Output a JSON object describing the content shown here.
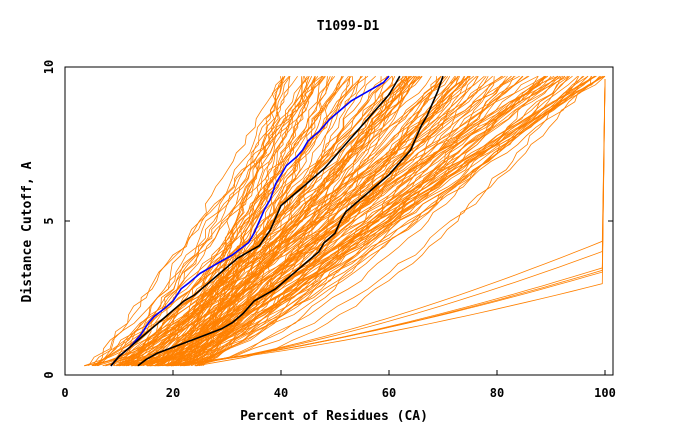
{
  "chart_data": {
    "type": "line",
    "title": "T1099-D1",
    "xlabel": "Percent of Residues (CA)",
    "ylabel": "Distance Cutoff, A",
    "xlim": [
      0,
      100
    ],
    "ylim": [
      0,
      10
    ],
    "xticks": [
      "0",
      "20",
      "40",
      "60",
      "80",
      "100"
    ],
    "yticks": [
      "0",
      "5",
      "10"
    ],
    "grid": false,
    "legend": "none",
    "colors": {
      "models": "#ff8000",
      "highlight_1": "#000000",
      "highlight_2": "#000000",
      "highlight_3": "#0000ff",
      "frame": "#000000"
    },
    "series": [
      {
        "color_key": "highlight_3",
        "x": [
          8.5,
          10,
          12,
          14,
          15.5,
          16.5,
          18,
          20,
          21.5,
          23,
          25,
          27,
          29,
          31,
          34,
          35,
          36,
          37,
          38,
          39,
          40,
          41,
          43,
          44,
          45,
          47,
          49,
          51,
          53,
          55,
          57,
          59,
          60
        ],
        "y": [
          0.3,
          0.6,
          0.9,
          1.3,
          1.7,
          1.9,
          2.1,
          2.4,
          2.8,
          3.0,
          3.3,
          3.5,
          3.7,
          3.9,
          4.3,
          4.6,
          5.0,
          5.4,
          5.7,
          6.2,
          6.5,
          6.8,
          7.1,
          7.3,
          7.6,
          7.9,
          8.3,
          8.6,
          8.9,
          9.1,
          9.3,
          9.5,
          9.7
        ]
      },
      {
        "color_key": "highlight_1",
        "x": [
          8.5,
          10,
          12,
          14,
          16,
          18,
          20,
          22,
          24,
          26,
          28,
          30,
          32,
          34,
          36,
          38,
          39,
          40,
          42,
          44,
          46,
          48,
          50,
          52,
          54,
          56,
          58,
          60,
          61,
          62
        ],
        "y": [
          0.3,
          0.6,
          0.9,
          1.2,
          1.5,
          1.8,
          2.1,
          2.4,
          2.6,
          2.9,
          3.2,
          3.5,
          3.8,
          4.0,
          4.2,
          4.7,
          5.1,
          5.5,
          5.8,
          6.1,
          6.4,
          6.7,
          7.1,
          7.5,
          7.9,
          8.3,
          8.7,
          9.1,
          9.4,
          9.7
        ]
      },
      {
        "color_key": "highlight_2",
        "x": [
          13.5,
          15,
          17,
          20,
          23,
          26,
          29,
          31,
          33,
          35,
          37,
          39,
          41,
          43,
          45,
          47,
          48,
          50,
          51,
          52,
          54,
          56,
          58,
          60,
          62,
          64,
          65,
          66,
          67,
          68,
          69,
          70
        ],
        "y": [
          0.3,
          0.5,
          0.7,
          0.9,
          1.1,
          1.3,
          1.5,
          1.7,
          2.0,
          2.4,
          2.6,
          2.8,
          3.1,
          3.4,
          3.7,
          4.0,
          4.3,
          4.6,
          5.0,
          5.3,
          5.6,
          5.9,
          6.2,
          6.5,
          6.9,
          7.3,
          7.7,
          8.1,
          8.4,
          8.8,
          9.2,
          9.7
        ]
      }
    ]
  }
}
